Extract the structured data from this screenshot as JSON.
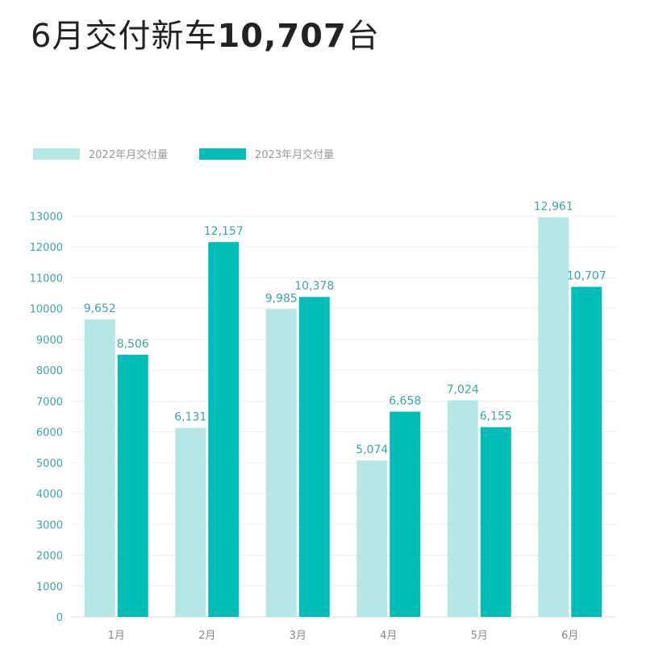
{
  "title": {
    "prefix": "6月交付新车",
    "highlight": "10,707",
    "suffix": "台"
  },
  "chart_data": {
    "type": "bar",
    "categories": [
      "1月",
      "2月",
      "3月",
      "4月",
      "5月",
      "6月"
    ],
    "series": [
      {
        "name": "2022年月交付量",
        "color": "#b5e7e6",
        "values": [
          9652,
          6131,
          9985,
          5074,
          7024,
          12961
        ],
        "labels": [
          "9,652",
          "6,131",
          "9,985",
          "5,074",
          "7,024",
          "12,961"
        ]
      },
      {
        "name": "2023年月交付量",
        "color": "#00bdb7",
        "values": [
          8506,
          12157,
          10378,
          6658,
          6155,
          10707
        ],
        "labels": [
          "8,506",
          "12,157",
          "10,378",
          "6,658",
          "6,155",
          "10,707"
        ]
      }
    ],
    "ylim": [
      0,
      13000
    ],
    "yticks": [
      0,
      1000,
      2000,
      3000,
      4000,
      5000,
      6000,
      7000,
      8000,
      9000,
      10000,
      11000,
      12000,
      13000
    ],
    "grid": true,
    "legend": "top-left"
  }
}
